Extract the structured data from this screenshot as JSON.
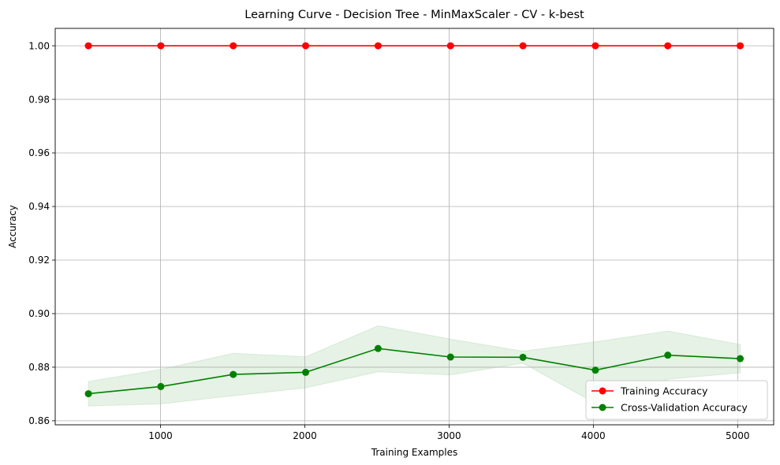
{
  "chart_data": {
    "type": "line",
    "title": "Learning Curve - Decision Tree - MinMaxScaler - CV - k-best",
    "xlabel": "Training Examples",
    "ylabel": "Accuracy",
    "xlim": [
      270,
      5250
    ],
    "ylim": [
      0.8585,
      1.0065
    ],
    "x_ticks": [
      1000,
      2000,
      3000,
      4000,
      5000
    ],
    "y_ticks": [
      0.86,
      0.88,
      0.9,
      0.92,
      0.94,
      0.96,
      0.98,
      1.0
    ],
    "grid": true,
    "legend_position": "lower-right",
    "x": [
      500,
      1002,
      1504,
      2006,
      2508,
      3010,
      3512,
      4014,
      4516,
      5018
    ],
    "series": [
      {
        "name": "Training Accuracy",
        "color": "#ff0000",
        "values": [
          1.0,
          1.0,
          1.0,
          1.0,
          1.0,
          1.0,
          1.0,
          1.0,
          1.0,
          1.0
        ],
        "band_lower": [
          1.0,
          1.0,
          1.0,
          1.0,
          1.0,
          1.0,
          1.0,
          1.0,
          1.0,
          1.0
        ],
        "band_upper": [
          1.0,
          1.0,
          1.0,
          1.0,
          1.0,
          1.0,
          1.0,
          1.0,
          1.0,
          1.0
        ]
      },
      {
        "name": "Cross-Validation Accuracy",
        "color": "#008000",
        "values": [
          0.8701,
          0.8728,
          0.8773,
          0.8781,
          0.887,
          0.8838,
          0.8837,
          0.8789,
          0.8845,
          0.8832
        ],
        "band_lower": [
          0.8655,
          0.8663,
          0.8693,
          0.8723,
          0.8783,
          0.8771,
          0.8815,
          0.8665,
          0.8755,
          0.8779
        ],
        "band_upper": [
          0.8747,
          0.8792,
          0.8852,
          0.8839,
          0.8955,
          0.8905,
          0.886,
          0.8895,
          0.8935,
          0.8885
        ]
      }
    ]
  }
}
